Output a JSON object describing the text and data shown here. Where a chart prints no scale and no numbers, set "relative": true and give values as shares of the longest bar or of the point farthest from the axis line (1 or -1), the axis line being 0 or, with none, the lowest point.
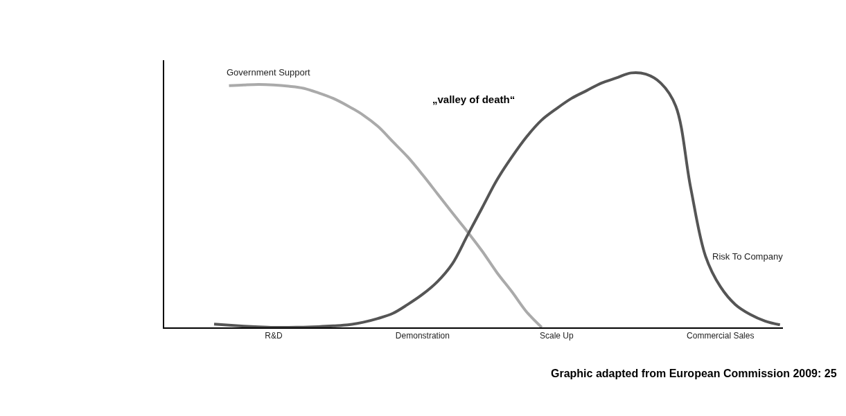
{
  "chart_data": {
    "type": "line",
    "relative": true,
    "categories": [
      null,
      null,
      null,
      null,
      null,
      null,
      null,
      "R&D",
      null,
      null,
      null,
      null,
      null,
      null,
      null,
      null,
      null,
      "Demonstration",
      null,
      null,
      null,
      null,
      null,
      null,
      null,
      null,
      "Scale Up",
      null,
      null,
      null,
      null,
      null,
      null,
      null,
      null,
      null,
      null,
      "Commercial Sales",
      null,
      null,
      null,
      null
    ],
    "series": [
      {
        "name": "Government Support",
        "color": "#aaaaaa",
        "values": [
          null,
          null,
          null,
          null,
          0.95,
          0.953,
          0.955,
          0.953,
          0.948,
          0.94,
          0.922,
          0.9,
          0.87,
          0.835,
          0.79,
          0.73,
          0.67,
          0.6,
          0.525,
          0.45,
          0.377,
          0.3,
          0.215,
          0.14,
          0.06,
          0,
          null,
          null,
          null,
          null,
          null,
          null,
          null,
          null,
          null,
          null,
          null,
          null,
          null,
          null,
          null,
          null
        ]
      },
      {
        "name": "Risk To Company",
        "color": "#555555",
        "values": [
          null,
          null,
          null,
          0.013,
          0.009,
          0.005,
          0.002,
          0,
          0,
          0.001,
          0.003,
          0.006,
          0.01,
          0.02,
          0.035,
          0.055,
          0.09,
          0.13,
          0.18,
          0.25,
          0.36,
          0.47,
          0.58,
          0.67,
          0.75,
          0.815,
          0.86,
          0.9,
          0.93,
          0.96,
          0.98,
          1,
          0.995,
          0.96,
          0.87,
          0.55,
          0.28,
          0.16,
          0.09,
          0.051,
          0.025,
          0.01
        ]
      }
    ],
    "annotations": [
      "„valley of death“",
      "Graphic adapted from European Commission 2009: 25"
    ],
    "legend": false,
    "marker": "none",
    "line_style": "solid"
  }
}
